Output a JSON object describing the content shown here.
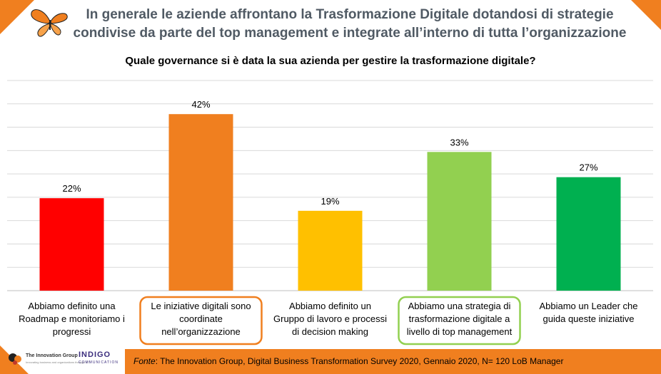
{
  "header": {
    "title_line1": "In generale le aziende affrontano la Trasformazione Digitale dotandosi di strategie",
    "title_line2": "condivise da parte del top management e integrate all’interno di tutta l’organizzazione"
  },
  "colors": {
    "accent": "#f07f1f",
    "title_text": "#505a64"
  },
  "chart_data": {
    "type": "bar",
    "title": "Quale governance si è data la sua azienda per gestire la trasformazione digitale?",
    "unit": "%",
    "ylim": [
      0,
      50
    ],
    "grid": true,
    "categories": [
      [
        "Abbiamo definito una",
        "Roadmap e monitoriamo i",
        "progressi"
      ],
      [
        "Le iniziative digitali sono",
        "coordinate",
        "nell’organizzazione"
      ],
      [
        "Abbiamo definito un",
        "Gruppo di lavoro e processi",
        "di decision making"
      ],
      [
        "Abbiamo una strategia di",
        "trasformazione digitale a",
        "livello di top management"
      ],
      [
        "Abbiamo un Leader che",
        "guida queste iniziative"
      ]
    ],
    "values": [
      22,
      42,
      19,
      33,
      27
    ],
    "value_labels": [
      "22%",
      "42%",
      "19%",
      "33%",
      "27%"
    ],
    "bar_colors": [
      "#ff0000",
      "#f07f1f",
      "#ffc000",
      "#92d050",
      "#00b050"
    ],
    "highlighted": [
      false,
      true,
      false,
      true,
      false
    ],
    "highlight_colors": [
      "",
      "#f07f1f",
      "",
      "#92d050",
      ""
    ]
  },
  "footer": {
    "source_label": "Fonte",
    "source_text": ": The Innovation Group, Digital Business Transformation Survey 2020, Gennaio 2020, N= 120 LoB Manager"
  },
  "logos": {
    "tig_name": "The Innovation Group",
    "tig_tagline": "Innovating business and organizations through ICT",
    "indigo_name": "INDIGO",
    "indigo_sub": "COMMUNICATION"
  },
  "icons": {
    "decoration": "butterfly-icon"
  }
}
